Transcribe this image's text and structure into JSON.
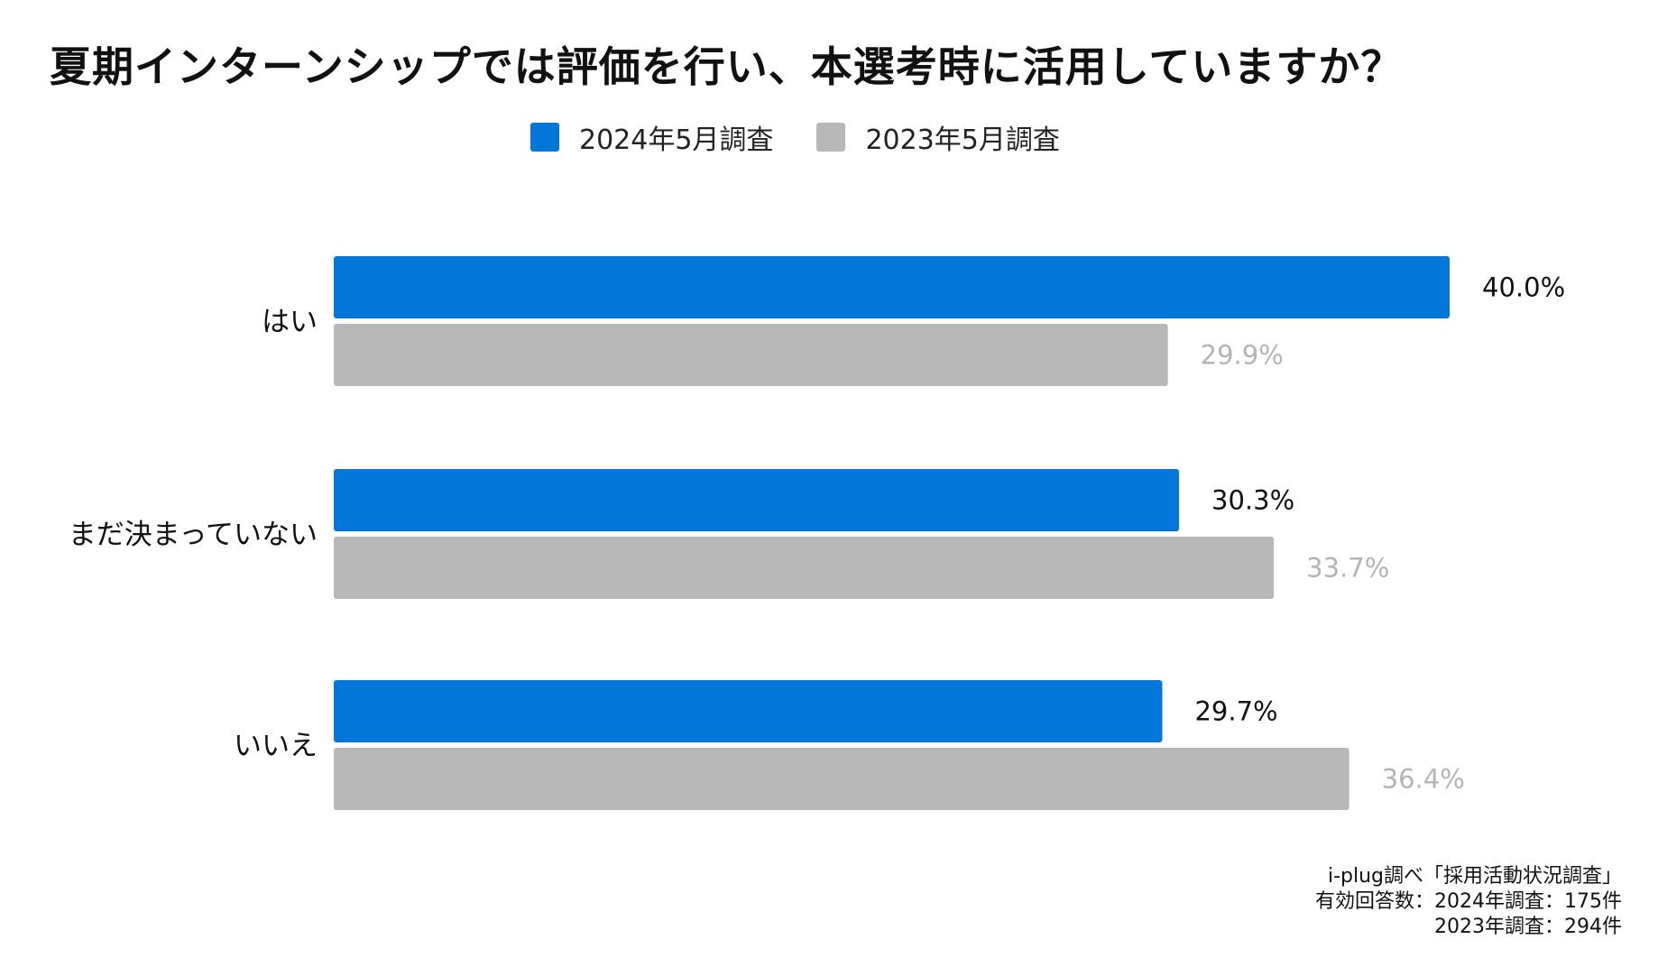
{
  "chart_data": {
    "type": "bar",
    "orientation": "horizontal",
    "title": "夏期インターンシップでは評価を行い、本選考時に活用していますか？",
    "categories": [
      "はい",
      "まだ決まっていない",
      "いいえ"
    ],
    "series": [
      {
        "name": "2024年5月調査",
        "values": [
          40.0,
          30.3,
          29.7
        ],
        "labels": [
          "40.0%",
          "30.3%",
          "29.7%"
        ],
        "color": "#0377d9",
        "label_color": "#111111"
      },
      {
        "name": "2023年5月調査",
        "values": [
          29.9,
          33.7,
          36.4
        ],
        "labels": [
          "29.9%",
          "33.7%",
          "36.4%"
        ],
        "color": "#b8b8b8",
        "label_color": "#b4b4b4"
      }
    ],
    "unit": "%",
    "xlim": [
      0,
      40.0
    ],
    "grid": false,
    "legend_position": "top-center"
  },
  "source": {
    "line1": "i-plug調べ「採用活動状況調査」",
    "line2": "有効回答数：2024年調査：175件",
    "line3": "2023年調査：294件"
  }
}
